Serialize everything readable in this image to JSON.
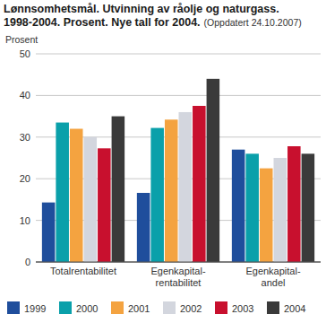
{
  "chart_data": {
    "type": "bar",
    "title": "Lønnsomhetsmål. Utvinning av råolje og naturgass. 1998-2004. Prosent. Nye tall for 2004.",
    "subtitle": "(Oppdatert 24.10.2007)",
    "y_label": "Prosent",
    "categories": [
      "Totalrentabilitet",
      "Egenkapital-rentabilitet",
      "Egenkapital-andel"
    ],
    "series": [
      {
        "name": "1999",
        "color": "#1f4e9c",
        "values": [
          14.3,
          16.6,
          27
        ]
      },
      {
        "name": "2000",
        "color": "#0aa0aa",
        "values": [
          33.5,
          32.2,
          26
        ]
      },
      {
        "name": "2001",
        "color": "#f4a340",
        "values": [
          32,
          34.2,
          22.5
        ]
      },
      {
        "name": "2002",
        "color": "#d3d6de",
        "values": [
          30,
          36,
          25
        ]
      },
      {
        "name": "2003",
        "color": "#c8102e",
        "values": [
          27.3,
          37.5,
          27.8
        ]
      },
      {
        "name": "2004",
        "color": "#3a3a3a",
        "values": [
          35,
          44,
          26
        ]
      }
    ],
    "ylim": [
      0,
      50
    ],
    "yticks": [
      0,
      10,
      20,
      30,
      40,
      50
    ],
    "grid": true,
    "legend": "bottom"
  }
}
